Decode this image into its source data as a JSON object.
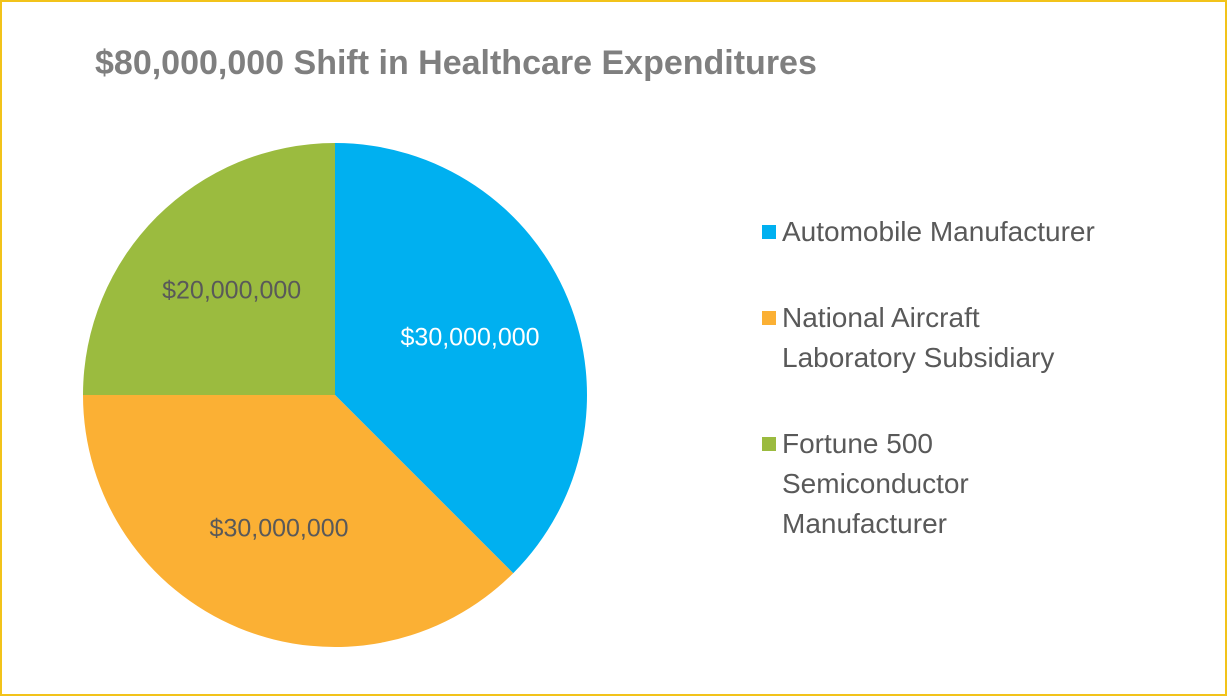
{
  "chart_data": {
    "type": "pie",
    "title": "$80,000,000 Shift in Healthcare Expenditures",
    "categories": [
      "Automobile Manufacturer",
      "National Aircraft Laboratory Subsidiary",
      "Fortune 500 Semiconductor Manufacturer"
    ],
    "values": [
      30000000,
      30000000,
      20000000
    ],
    "value_labels": [
      "$30,000,000",
      "$30,000,000",
      "$20,000,000"
    ],
    "colors": [
      "#00b0f0",
      "#fbb034",
      "#9bbb3f"
    ],
    "legend": "right"
  }
}
